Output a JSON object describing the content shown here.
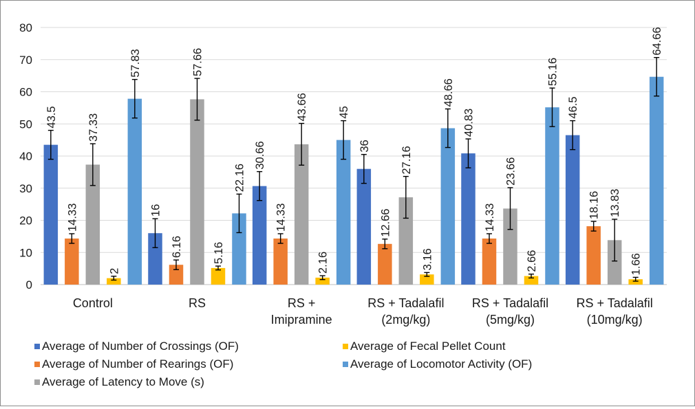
{
  "chart_data": {
    "type": "bar",
    "title": "",
    "xlabel": "",
    "ylabel": "",
    "ylim": [
      0,
      80
    ],
    "yticks": [
      0,
      10,
      20,
      30,
      40,
      50,
      60,
      70,
      80
    ],
    "grid": true,
    "legend_position": "bottom",
    "categories": [
      [
        "Control"
      ],
      [
        "RS"
      ],
      [
        "RS +",
        "Imipramine"
      ],
      [
        "RS + Tadalafil",
        "(2mg/kg)"
      ],
      [
        "RS + Tadalafil",
        "(5mg/kg)"
      ],
      [
        "RS + Tadalafil",
        "(10mg/kg)"
      ]
    ],
    "series": [
      {
        "name": "Average of Number of Crossings (OF)",
        "color": "#4472c4",
        "values": [
          43.5,
          16,
          30.66,
          36,
          40.83,
          46.5
        ],
        "labels": [
          "43.5",
          "16",
          "30.66",
          "36",
          "40.83",
          "46.5"
        ],
        "errors": [
          4.5,
          4.5,
          4.5,
          4.5,
          4.5,
          4.5
        ]
      },
      {
        "name": "Average of Number of Rearings (OF)",
        "color": "#ed7d31",
        "values": [
          14.33,
          6.16,
          14.33,
          12.66,
          14.33,
          18.16
        ],
        "labels": [
          "14.33",
          "6.16",
          "14.33",
          "12.66",
          "14.33",
          "18.16"
        ],
        "errors": [
          1.5,
          1.5,
          1.5,
          1.5,
          1.5,
          1.5
        ]
      },
      {
        "name": "Average of Latency to Move (s)",
        "color": "#a5a5a5",
        "values": [
          37.33,
          57.66,
          43.66,
          27.16,
          23.66,
          13.83
        ],
        "labels": [
          "37.33",
          "57.66",
          "43.66",
          "27.16",
          "23.66",
          "13.83"
        ],
        "errors": [
          6.5,
          6.5,
          6.5,
          6.5,
          6.5,
          6.5
        ]
      },
      {
        "name": "Average of Fecal Pellet Count",
        "color": "#ffc000",
        "values": [
          2,
          5.16,
          2.16,
          3.16,
          2.66,
          1.66
        ],
        "labels": [
          "2",
          "5.16",
          "2.16",
          "3.16",
          "2.66",
          "1.66"
        ],
        "errors": [
          0.6,
          0.6,
          0.6,
          0.6,
          0.6,
          0.6
        ]
      },
      {
        "name": "Average of Locomotor Activity (OF)",
        "color": "#5b9bd5",
        "values": [
          57.83,
          22.16,
          45,
          48.66,
          55.16,
          64.66
        ],
        "labels": [
          "57.83",
          "22.16",
          "45",
          "48.66",
          "55.16",
          "64.66"
        ],
        "errors": [
          6,
          6,
          6,
          6,
          6,
          6
        ]
      }
    ],
    "legend_order": [
      0,
      3,
      1,
      4,
      2
    ]
  }
}
